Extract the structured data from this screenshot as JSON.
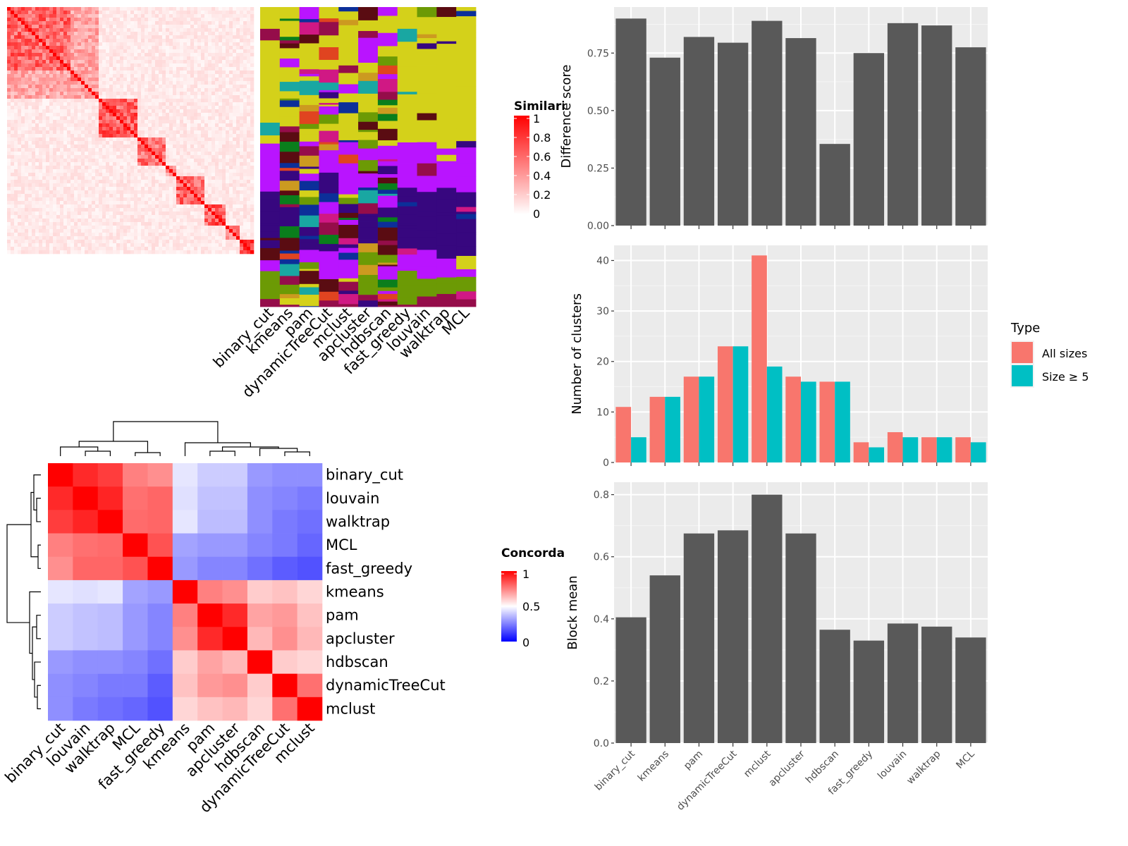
{
  "chart_data": [
    {
      "type": "heatmap",
      "panel": "similarity-matrix",
      "legend": {
        "title": "Similarity",
        "ticks": [
          "1",
          "0.8",
          "0.6",
          "0.4",
          "0.2",
          "0"
        ]
      },
      "methods": [
        "binary_cut",
        "kmeans",
        "pam",
        "dynamicTreeCut",
        "mclust",
        "apcluster",
        "hdbscan",
        "fast_greedy",
        "louvain",
        "walktrap",
        "MCL"
      ]
    },
    {
      "type": "heatmap",
      "panel": "concordance",
      "legend": {
        "title": "Concordance",
        "ticks": [
          "1",
          "0.5",
          "0"
        ]
      },
      "rows": [
        "binary_cut",
        "louvain",
        "walktrap",
        "MCL",
        "fast_greedy",
        "kmeans",
        "pam",
        "apcluster",
        "hdbscan",
        "dynamicTreeCut",
        "mclust"
      ],
      "columns": [
        "binary_cut",
        "louvain",
        "walktrap",
        "MCL",
        "fast_greedy",
        "kmeans",
        "pam",
        "apcluster",
        "hdbscan",
        "dynamicTreeCut",
        "mclust"
      ],
      "values": [
        [
          1.0,
          0.92,
          0.88,
          0.75,
          0.72,
          0.45,
          0.4,
          0.4,
          0.3,
          0.28,
          0.28
        ],
        [
          0.92,
          1.0,
          0.93,
          0.78,
          0.8,
          0.44,
          0.38,
          0.38,
          0.28,
          0.26,
          0.24
        ],
        [
          0.88,
          0.93,
          1.0,
          0.79,
          0.8,
          0.45,
          0.37,
          0.37,
          0.28,
          0.24,
          0.22
        ],
        [
          0.75,
          0.78,
          0.79,
          1.0,
          0.84,
          0.32,
          0.3,
          0.3,
          0.26,
          0.24,
          0.2
        ],
        [
          0.72,
          0.8,
          0.8,
          0.84,
          1.0,
          0.3,
          0.26,
          0.26,
          0.22,
          0.18,
          0.16
        ],
        [
          0.45,
          0.44,
          0.45,
          0.32,
          0.3,
          1.0,
          0.75,
          0.72,
          0.6,
          0.62,
          0.58
        ],
        [
          0.4,
          0.38,
          0.37,
          0.3,
          0.26,
          0.75,
          1.0,
          0.92,
          0.68,
          0.7,
          0.62
        ],
        [
          0.4,
          0.38,
          0.37,
          0.3,
          0.26,
          0.72,
          0.92,
          1.0,
          0.64,
          0.72,
          0.64
        ],
        [
          0.3,
          0.28,
          0.28,
          0.26,
          0.22,
          0.6,
          0.68,
          0.64,
          1.0,
          0.6,
          0.58
        ],
        [
          0.28,
          0.26,
          0.24,
          0.24,
          0.18,
          0.62,
          0.7,
          0.72,
          0.6,
          1.0,
          0.78
        ],
        [
          0.28,
          0.24,
          0.22,
          0.2,
          0.16,
          0.58,
          0.62,
          0.64,
          0.58,
          0.78,
          1.0
        ]
      ]
    },
    {
      "type": "bar",
      "panel": "difference-score",
      "categories": [
        "binary_cut",
        "kmeans",
        "pam",
        "dynamicTreeCut",
        "mclust",
        "apcluster",
        "hdbscan",
        "fast_greedy",
        "louvain",
        "walktrap",
        "MCL"
      ],
      "values": [
        0.9,
        0.73,
        0.82,
        0.795,
        0.89,
        0.815,
        0.355,
        0.75,
        0.88,
        0.87,
        0.775
      ],
      "ylabel": "Difference score",
      "yticks": [
        0.0,
        0.25,
        0.5,
        0.75
      ],
      "ytick_labels": [
        "0.00",
        "0.25",
        "0.50",
        "0.75"
      ],
      "ylim": [
        0,
        0.95
      ],
      "color": "#595959"
    },
    {
      "type": "bar",
      "panel": "number-of-clusters",
      "categories": [
        "binary_cut",
        "kmeans",
        "pam",
        "dynamicTreeCut",
        "mclust",
        "apcluster",
        "hdbscan",
        "fast_greedy",
        "louvain",
        "walktrap",
        "MCL"
      ],
      "series": [
        {
          "name": "All sizes",
          "color": "#F8766D",
          "values": [
            11,
            13,
            17,
            23,
            41,
            17,
            16,
            4,
            6,
            5,
            5
          ]
        },
        {
          "name": "Size ≥ 5",
          "color": "#00BFC4",
          "values": [
            5,
            13,
            17,
            23,
            19,
            16,
            16,
            3,
            5,
            5,
            4
          ]
        }
      ],
      "ylabel": "Number of clusters",
      "yticks": [
        0,
        10,
        20,
        30,
        40
      ],
      "ytick_labels": [
        "0",
        "10",
        "20",
        "30",
        "40"
      ],
      "ylim": [
        0,
        43
      ],
      "legend": {
        "title": "Type",
        "position": "right"
      }
    },
    {
      "type": "bar",
      "panel": "block-mean",
      "categories": [
        "binary_cut",
        "kmeans",
        "pam",
        "dynamicTreeCut",
        "mclust",
        "apcluster",
        "hdbscan",
        "fast_greedy",
        "louvain",
        "walktrap",
        "MCL"
      ],
      "values": [
        0.405,
        0.54,
        0.675,
        0.685,
        0.8,
        0.675,
        0.365,
        0.33,
        0.385,
        0.375,
        0.34
      ],
      "ylabel": "Block mean",
      "yticks": [
        0.0,
        0.2,
        0.4,
        0.6,
        0.8
      ],
      "ytick_labels": [
        "0.0",
        "0.2",
        "0.4",
        "0.6",
        "0.8"
      ],
      "ylim": [
        0,
        0.84
      ],
      "color": "#595959"
    }
  ]
}
